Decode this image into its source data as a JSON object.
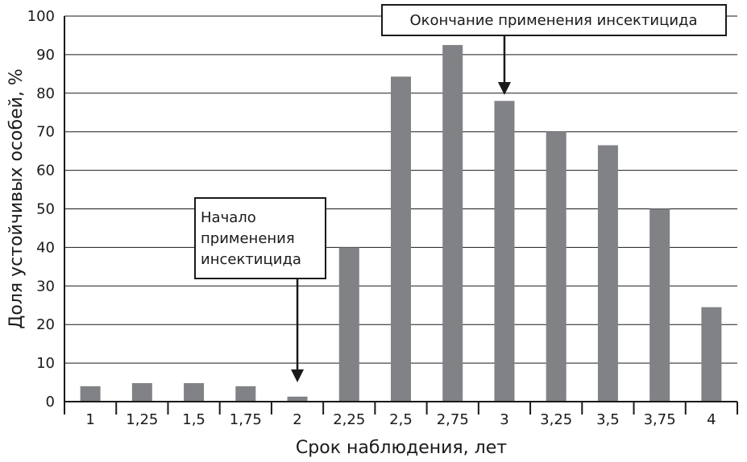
{
  "chart_data": {
    "type": "bar",
    "categories": [
      "1",
      "1,25",
      "1,5",
      "1,75",
      "2",
      "2,25",
      "2,5",
      "2,75",
      "3",
      "3,25",
      "3,5",
      "3,75",
      "4"
    ],
    "values": [
      4,
      4.8,
      4.8,
      4,
      1.3,
      40,
      84.3,
      92.5,
      78,
      70,
      66.5,
      50,
      24.5
    ],
    "xlabel": "Срок наблюдения, лет",
    "ylabel": "Доля устойчивых особей, %",
    "ylim": [
      0,
      100
    ],
    "yticks": [
      0,
      10,
      20,
      30,
      40,
      50,
      60,
      70,
      80,
      90,
      100
    ],
    "grid": true,
    "bar_color": "#808285",
    "annotations": [
      {
        "lines": [
          "Начало",
          "применения",
          "инсектицида"
        ],
        "target_category": "2"
      },
      {
        "lines": [
          "Окончание применения инсектицида"
        ],
        "target_category": "3"
      }
    ]
  }
}
